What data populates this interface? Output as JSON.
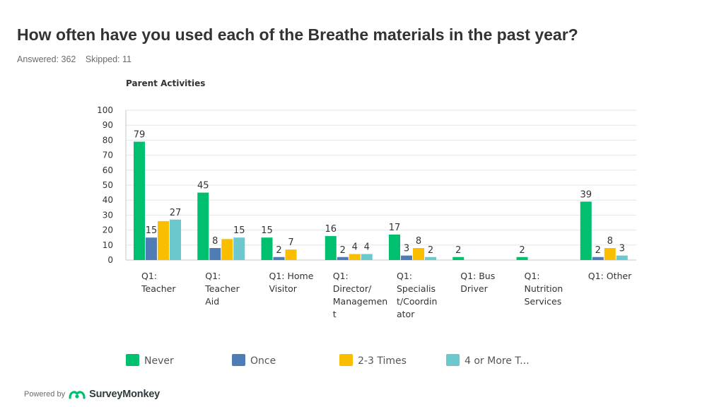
{
  "header": {
    "title": "How often have you used each of the Breathe materials in the past year?",
    "answered": "Answered: 362",
    "skipped": "Skipped: 11"
  },
  "footer": {
    "powered_by": "Powered by",
    "brand": "SurveyMonkey",
    "brand_icon": "surveymonkey-logo-icon"
  },
  "chart_data": {
    "type": "bar",
    "title": "Parent Activities",
    "categories": [
      [
        "Q1:",
        "Teacher"
      ],
      [
        "Q1:",
        "Teacher",
        "Aid"
      ],
      [
        "Q1: Home",
        "Visitor"
      ],
      [
        "Q1:",
        "Director/",
        "Managemen",
        "t"
      ],
      [
        "Q1:",
        "Specialis",
        "t/Coordin",
        "ator"
      ],
      [
        "Q1: Bus",
        "Driver"
      ],
      [
        "Q1:",
        "Nutrition",
        "Services"
      ],
      [
        "Q1: Other"
      ]
    ],
    "series": [
      {
        "name": "Never",
        "color": "#00bf6f",
        "values": [
          79,
          45,
          15,
          16,
          17,
          2,
          2,
          39
        ]
      },
      {
        "name": "Once",
        "color": "#507cb6",
        "values": [
          15,
          8,
          2,
          2,
          3,
          null,
          null,
          2
        ]
      },
      {
        "name": "2-3 Times",
        "color": "#f9be00",
        "values": [
          26,
          14,
          7,
          4,
          8,
          null,
          null,
          8
        ]
      },
      {
        "name": "4 or More T...",
        "color": "#6bc8cd",
        "values": [
          27,
          15,
          null,
          4,
          2,
          null,
          null,
          3
        ]
      }
    ],
    "data_labels": [
      [
        79,
        15,
        null,
        27
      ],
      [
        45,
        8,
        null,
        15
      ],
      [
        15,
        2,
        7,
        null
      ],
      [
        16,
        2,
        4,
        4
      ],
      [
        17,
        3,
        8,
        2
      ],
      [
        2,
        null,
        null,
        null
      ],
      [
        2,
        null,
        null,
        null
      ],
      [
        39,
        2,
        8,
        3
      ]
    ],
    "ylim": [
      0,
      100
    ],
    "yticks": [
      0,
      10,
      20,
      30,
      40,
      50,
      60,
      70,
      80,
      90,
      100
    ],
    "grid": true,
    "legend_position": "bottom"
  }
}
